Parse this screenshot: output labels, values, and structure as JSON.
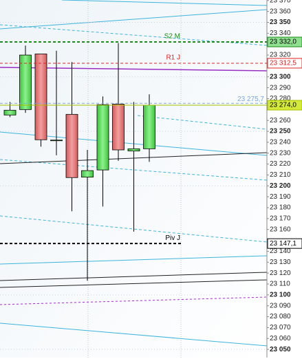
{
  "chart_data": {
    "type": "candlestick",
    "open": [
      23265,
      23270,
      23321,
      23242,
      23265.6,
      23208,
      23214.6,
      23275,
      23232,
      23234
    ],
    "high": [
      23277,
      23328.7,
      23321,
      23324,
      23313.6,
      23233,
      23282,
      23331,
      23277,
      23284
    ],
    "low": [
      23263,
      23267,
      23236,
      23228,
      23176.7,
      23113,
      23181,
      23223,
      23158,
      23222
    ],
    "close": [
      23269.4,
      23320,
      23242.3,
      23242,
      23207.6,
      23214,
      23274.5,
      23233,
      23234,
      23274
    ],
    "up_color": "#66dd66",
    "down_color": "#e57373",
    "ylim": [
      23042.5,
      23370.5
    ],
    "yticks": [
      {
        "value": 23370,
        "label": "23 370"
      },
      {
        "value": 23360,
        "label": "23 360"
      },
      {
        "value": 23350,
        "label": "23 350"
      },
      {
        "value": 23340,
        "label": "23 340"
      },
      {
        "value": 23320,
        "label": "23 320"
      },
      {
        "value": 23300,
        "label": "23 300"
      },
      {
        "value": 23290,
        "label": "23 290"
      },
      {
        "value": 23280,
        "label": "23 280"
      },
      {
        "value": 23260,
        "label": "23 260"
      },
      {
        "value": 23250,
        "label": "23 250"
      },
      {
        "value": 23240,
        "label": "23 240"
      },
      {
        "value": 23230,
        "label": "23 230"
      },
      {
        "value": 23220,
        "label": "23 220"
      },
      {
        "value": 23210,
        "label": "23 210"
      },
      {
        "value": 23200,
        "label": "23 200"
      },
      {
        "value": 23190,
        "label": "23 190"
      },
      {
        "value": 23180,
        "label": "23 180"
      },
      {
        "value": 23170,
        "label": "23 170"
      },
      {
        "value": 23160,
        "label": "23 160"
      },
      {
        "value": 23140,
        "label": "23 140"
      },
      {
        "value": 23130,
        "label": "23 130"
      },
      {
        "value": 23120,
        "label": "23 120"
      },
      {
        "value": 23110,
        "label": "23 110"
      },
      {
        "value": 23100,
        "label": "23 100"
      },
      {
        "value": 23090,
        "label": "23 090"
      },
      {
        "value": 23080,
        "label": "23 080"
      },
      {
        "value": 23070,
        "label": "23 070"
      },
      {
        "value": 23060,
        "label": "23 060"
      },
      {
        "value": 23050,
        "label": "23 050"
      }
    ],
    "levels": [
      {
        "name": "S2 M",
        "value": 23332.0,
        "value_label": "23 332,0",
        "color": "#1a8a1a"
      },
      {
        "name": "R1 J",
        "value": 23312.5,
        "value_label": "23 312,5",
        "color": "#e02020"
      },
      {
        "value": 23275.7,
        "value_label": "23 275,7",
        "color": "#7aa6d8"
      },
      {
        "value": 23274.0,
        "value_label": "23 274,0",
        "color": "#a8c000"
      },
      {
        "name": "Piv J",
        "value": 23147.1,
        "value_label": "23 147,1",
        "color": "#000000"
      }
    ]
  }
}
